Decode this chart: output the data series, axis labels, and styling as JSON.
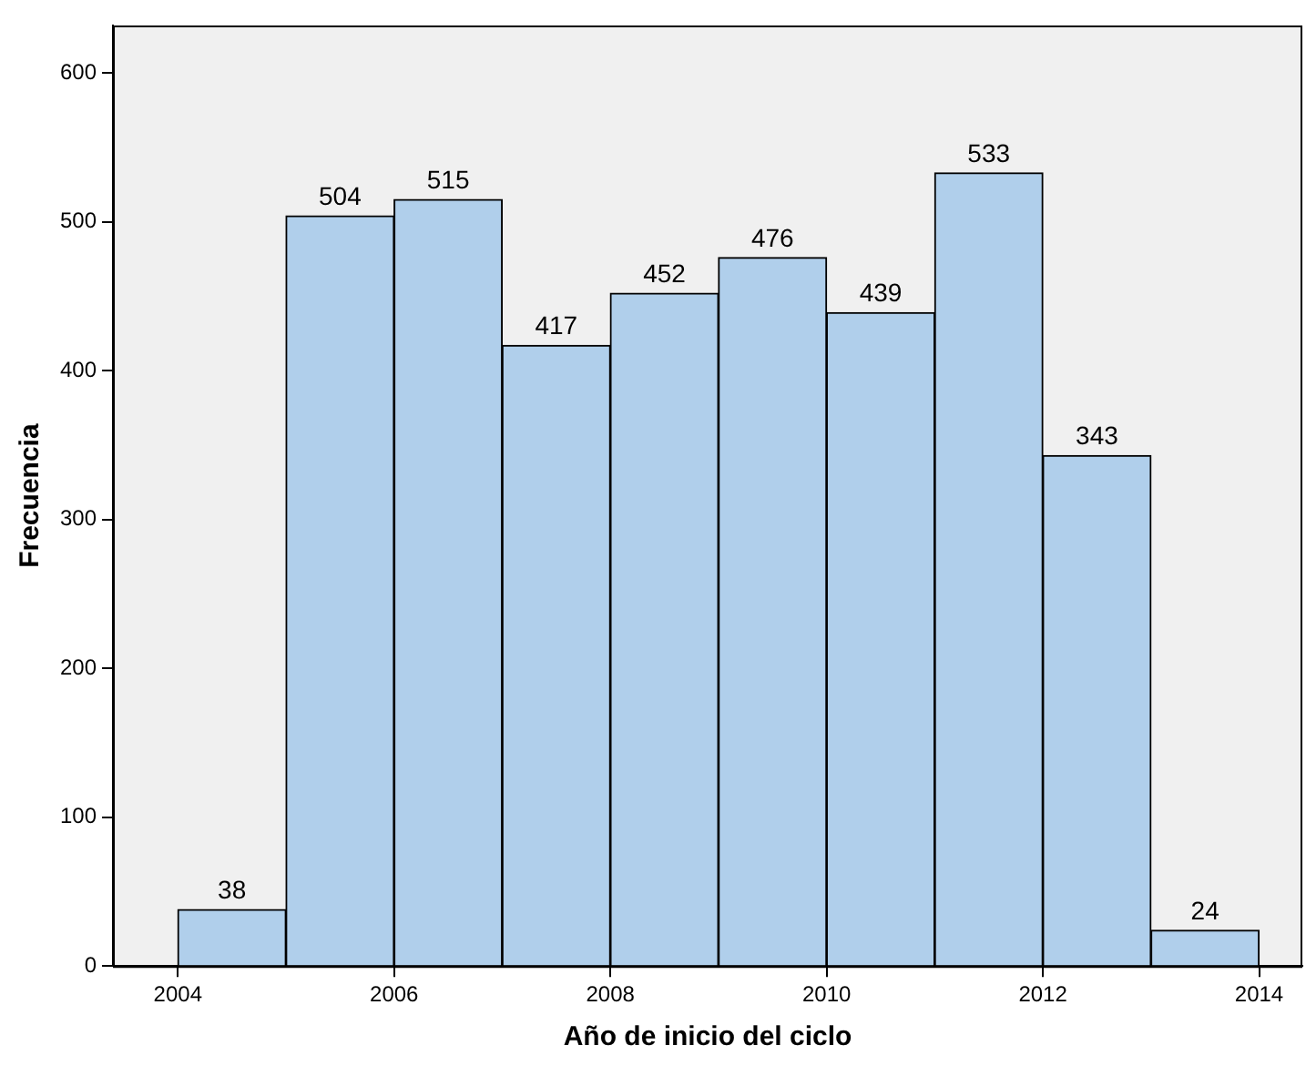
{
  "chart_data": {
    "type": "histogram",
    "xlabel": "Año de inicio del ciclo",
    "ylabel": "Frecuencia",
    "bins": [
      2004,
      2005,
      2006,
      2007,
      2008,
      2009,
      2010,
      2011,
      2012,
      2013,
      2014
    ],
    "values": [
      38,
      504,
      515,
      417,
      452,
      476,
      439,
      533,
      343,
      24
    ],
    "color": "#b0cfeb",
    "xlim": [
      2003.4,
      2014.4
    ],
    "xticks": [
      2004,
      2006,
      2008,
      2010,
      2012,
      2014
    ],
    "ylim": [
      0,
      632
    ],
    "yticks": [
      0,
      100,
      200,
      300,
      400,
      500,
      600
    ],
    "data_labels": true,
    "grid": false,
    "legend": false
  }
}
